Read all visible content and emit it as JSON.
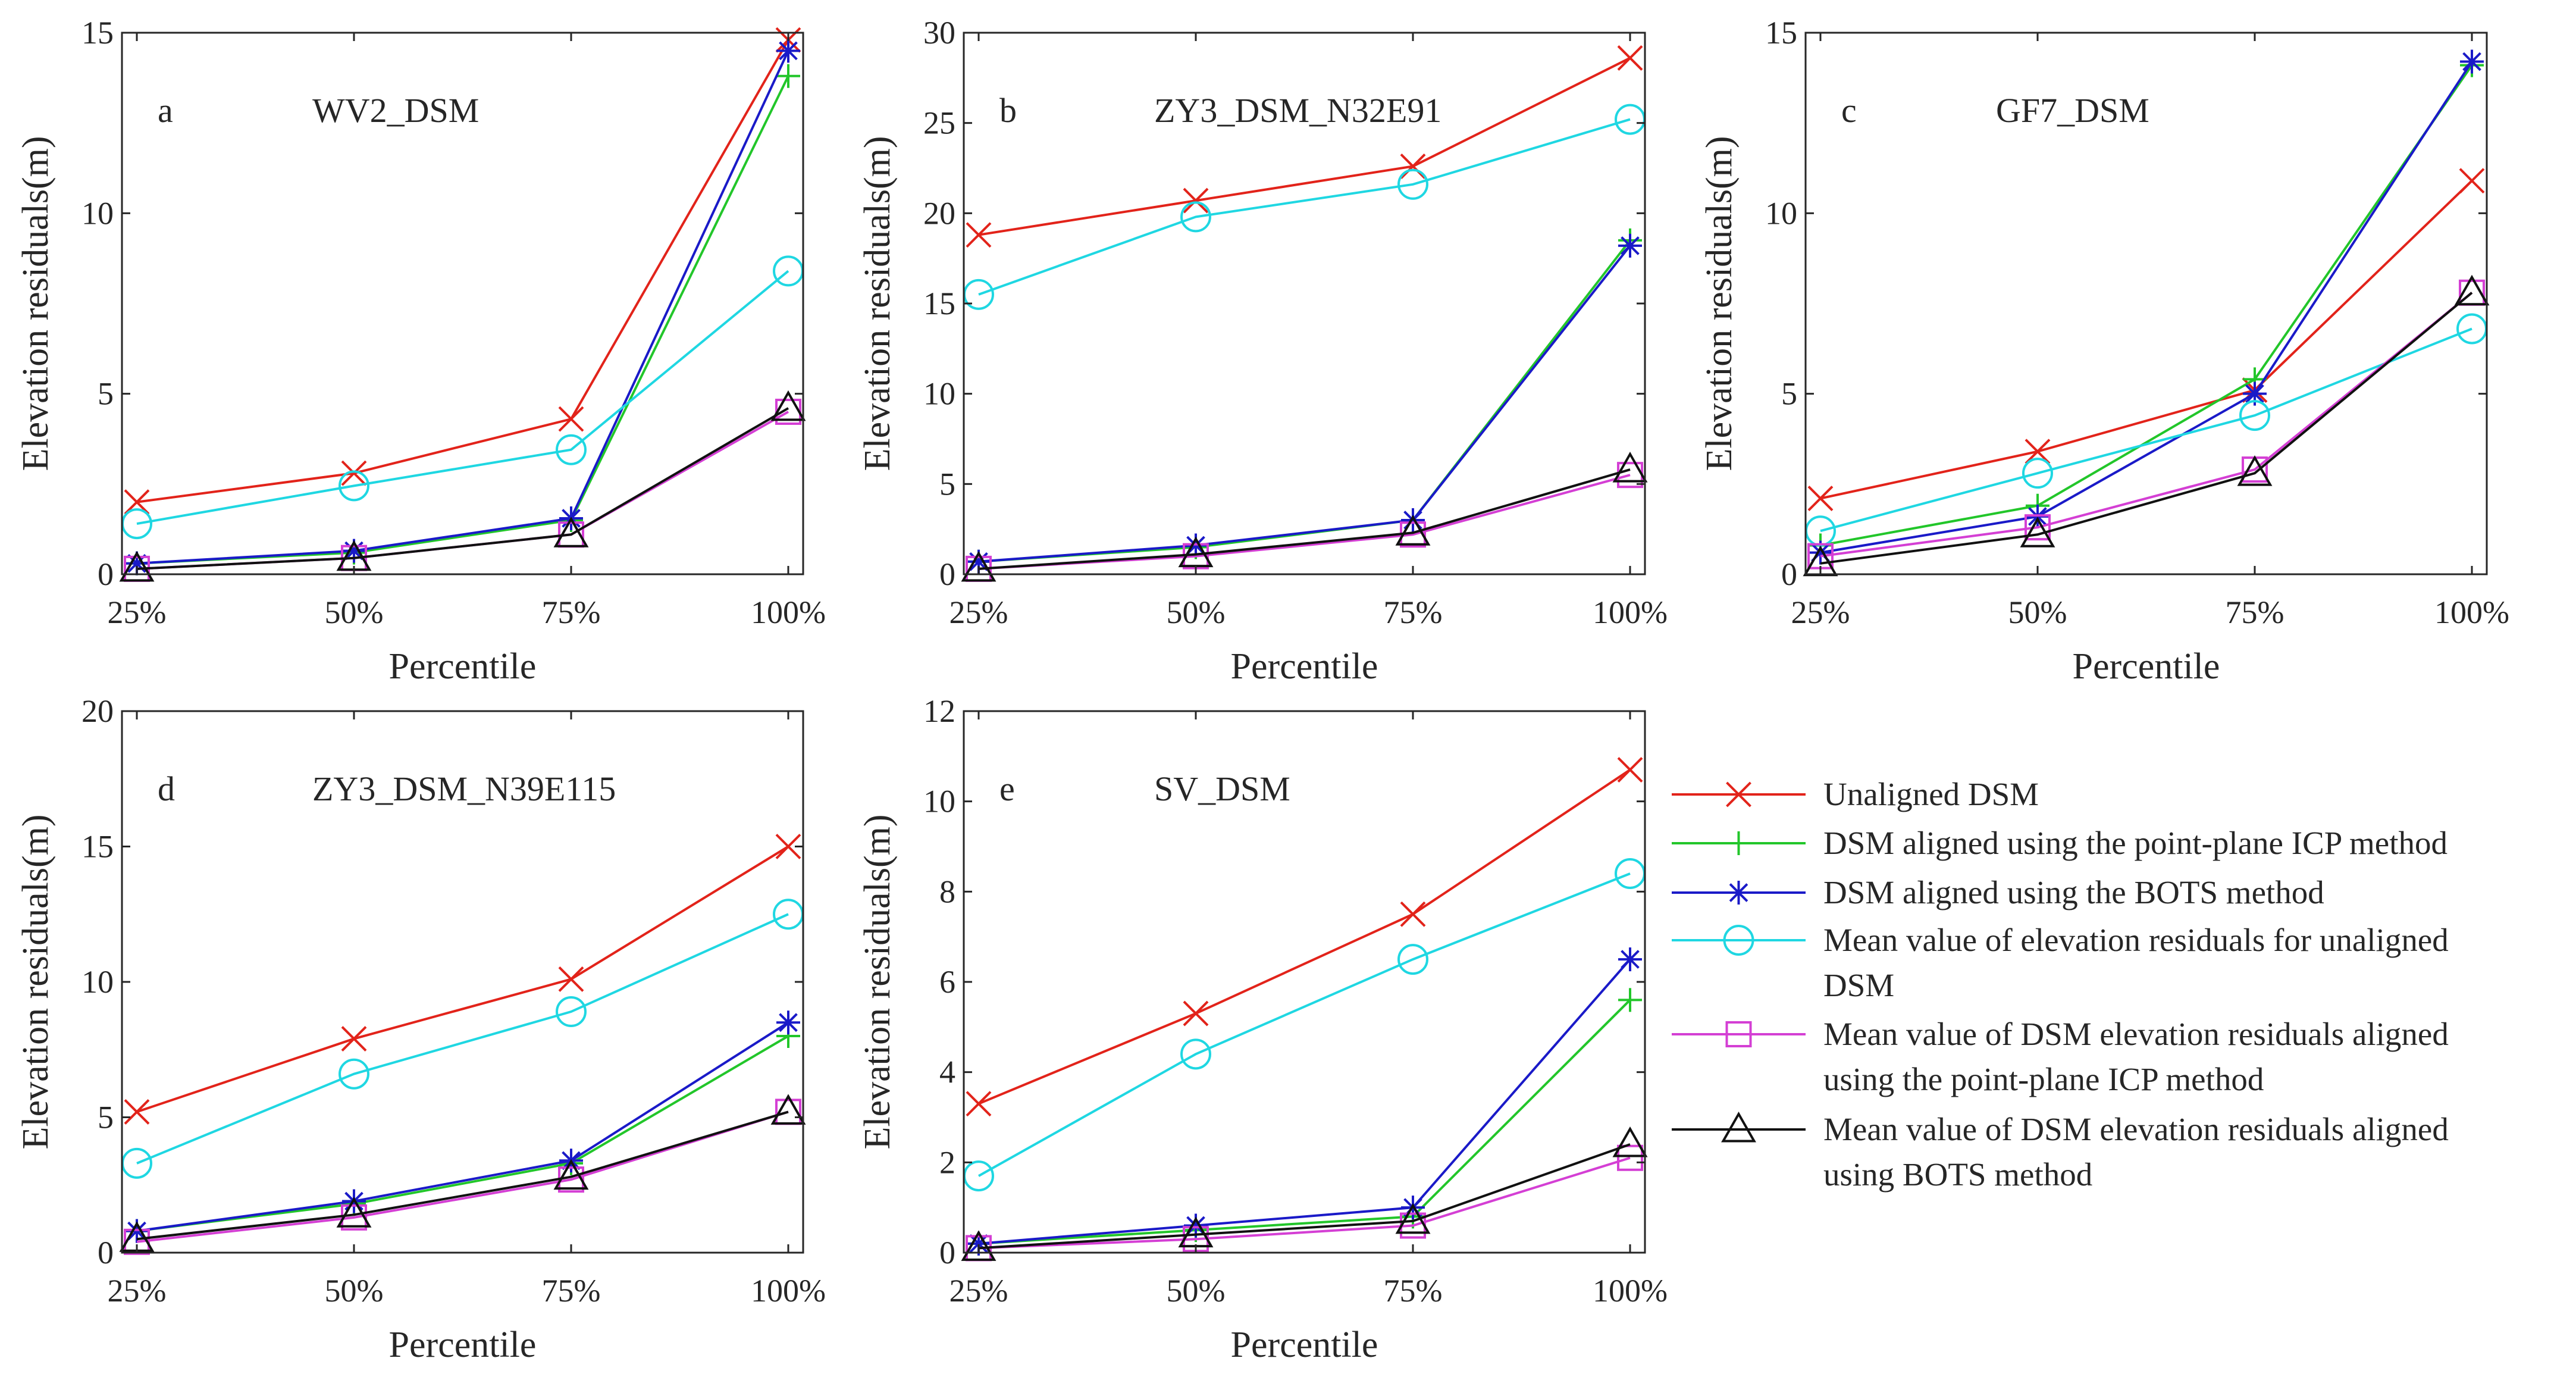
{
  "series_meta": [
    {
      "key": "unaligned",
      "color": "#E2231A",
      "marker": "x",
      "legend": [
        "Unaligned DSM"
      ]
    },
    {
      "key": "icp",
      "color": "#22C62A",
      "marker": "plus",
      "legend": [
        "DSM aligned using the point-plane ICP method"
      ]
    },
    {
      "key": "bots",
      "color": "#1A1AC8",
      "marker": "star",
      "legend": [
        "DSM aligned using the BOTS method"
      ]
    },
    {
      "key": "mean_unaligned",
      "color": "#1FD7E2",
      "marker": "circle",
      "legend": [
        "Mean value of elevation residuals for unaligned",
        "DSM"
      ]
    },
    {
      "key": "mean_icp",
      "color": "#D43FD4",
      "marker": "square",
      "legend": [
        "Mean value of DSM elevation residuals aligned",
        "using the point-plane ICP method"
      ]
    },
    {
      "key": "mean_bots",
      "color": "#111111",
      "marker": "triangle",
      "legend": [
        "Mean value of DSM elevation residuals aligned",
        "using BOTS method"
      ]
    }
  ],
  "chart_data": [
    {
      "type": "line",
      "letter": "a",
      "title": "WV2_DSM",
      "xlabel": "Percentile",
      "ylabel": "Elevation residuals(m)",
      "categories": [
        "25%",
        "50%",
        "75%",
        "100%"
      ],
      "ylim": [
        0,
        15
      ],
      "yticks": [
        0,
        5,
        10,
        15
      ],
      "series": [
        {
          "name": "Unaligned DSM",
          "values": [
            2.0,
            2.8,
            4.3,
            14.8
          ]
        },
        {
          "name": "DSM aligned using the point-plane ICP method",
          "values": [
            0.3,
            0.6,
            1.5,
            13.8
          ]
        },
        {
          "name": "DSM aligned using the BOTS method",
          "values": [
            0.3,
            0.65,
            1.55,
            14.5
          ]
        },
        {
          "name": "Mean value of elevation residuals for unaligned DSM",
          "values": [
            1.4,
            2.45,
            3.45,
            8.4
          ]
        },
        {
          "name": "Mean value of DSM elevation residuals aligned using the point-plane ICP method",
          "values": [
            0.15,
            0.45,
            1.1,
            4.5
          ]
        },
        {
          "name": "Mean value of DSM elevation residuals aligned using BOTS method",
          "values": [
            0.15,
            0.45,
            1.1,
            4.6
          ]
        }
      ]
    },
    {
      "type": "line",
      "letter": "b",
      "title": "ZY3_DSM_N32E91",
      "xlabel": "Percentile",
      "ylabel": "Elevation residuals(m)",
      "categories": [
        "25%",
        "50%",
        "75%",
        "100%"
      ],
      "ylim": [
        0,
        30
      ],
      "yticks": [
        0,
        5,
        10,
        15,
        20,
        25,
        30
      ],
      "series": [
        {
          "name": "Unaligned DSM",
          "values": [
            18.8,
            20.7,
            22.6,
            28.6
          ]
        },
        {
          "name": "DSM aligned using the point-plane ICP method",
          "values": [
            0.7,
            1.5,
            3.0,
            18.5
          ]
        },
        {
          "name": "DSM aligned using the BOTS method",
          "values": [
            0.7,
            1.6,
            3.0,
            18.2
          ]
        },
        {
          "name": "Mean value of elevation residuals for unaligned DSM",
          "values": [
            15.5,
            19.8,
            21.6,
            25.2
          ]
        },
        {
          "name": "Mean value of DSM elevation residuals aligned using the point-plane ICP method",
          "values": [
            0.3,
            1.0,
            2.2,
            5.5
          ]
        },
        {
          "name": "Mean value of DSM elevation residuals aligned using BOTS method",
          "values": [
            0.3,
            1.1,
            2.3,
            5.8
          ]
        }
      ]
    },
    {
      "type": "line",
      "letter": "c",
      "title": "GF7_DSM",
      "xlabel": "Percentile",
      "ylabel": "Elevation residuals(m)",
      "categories": [
        "25%",
        "50%",
        "75%",
        "100%"
      ],
      "ylim": [
        0,
        15
      ],
      "yticks": [
        0,
        5,
        10,
        15
      ],
      "series": [
        {
          "name": "Unaligned DSM",
          "values": [
            2.1,
            3.4,
            5.1,
            10.9
          ]
        },
        {
          "name": "DSM aligned using the point-plane ICP method",
          "values": [
            0.8,
            1.9,
            5.4,
            14.1
          ]
        },
        {
          "name": "DSM aligned using the BOTS method",
          "values": [
            0.6,
            1.6,
            5.0,
            14.2
          ]
        },
        {
          "name": "Mean value of elevation residuals for unaligned DSM",
          "values": [
            1.2,
            2.8,
            4.4,
            6.8
          ]
        },
        {
          "name": "Mean value of DSM elevation residuals aligned using the point-plane ICP method",
          "values": [
            0.5,
            1.3,
            2.9,
            7.8
          ]
        },
        {
          "name": "Mean value of DSM elevation residuals aligned using BOTS method",
          "values": [
            0.3,
            1.1,
            2.8,
            7.8
          ]
        }
      ]
    },
    {
      "type": "line",
      "letter": "d",
      "title": "ZY3_DSM_N39E115",
      "xlabel": "Percentile",
      "ylabel": "Elevation residuals(m)",
      "categories": [
        "25%",
        "50%",
        "75%",
        "100%"
      ],
      "ylim": [
        0,
        20
      ],
      "yticks": [
        0,
        5,
        10,
        15,
        20
      ],
      "series": [
        {
          "name": "Unaligned DSM",
          "values": [
            5.2,
            7.9,
            10.1,
            15.0
          ]
        },
        {
          "name": "DSM aligned using the point-plane ICP method",
          "values": [
            0.8,
            1.8,
            3.3,
            8.0
          ]
        },
        {
          "name": "DSM aligned using the BOTS method",
          "values": [
            0.8,
            1.9,
            3.4,
            8.5
          ]
        },
        {
          "name": "Mean value of elevation residuals for unaligned DSM",
          "values": [
            3.3,
            6.6,
            8.9,
            12.5
          ]
        },
        {
          "name": "Mean value of DSM elevation residuals aligned using the point-plane ICP method",
          "values": [
            0.4,
            1.3,
            2.7,
            5.2
          ]
        },
        {
          "name": "Mean value of DSM elevation residuals aligned using BOTS method",
          "values": [
            0.5,
            1.4,
            2.8,
            5.2
          ]
        }
      ]
    },
    {
      "type": "line",
      "letter": "e",
      "title": "SV_DSM",
      "xlabel": "Percentile",
      "ylabel": "Elevation residuals(m)",
      "categories": [
        "25%",
        "50%",
        "75%",
        "100%"
      ],
      "ylim": [
        0,
        12
      ],
      "yticks": [
        0,
        2,
        4,
        6,
        8,
        10,
        12
      ],
      "series": [
        {
          "name": "Unaligned DSM",
          "values": [
            3.3,
            5.3,
            7.5,
            10.7
          ]
        },
        {
          "name": "DSM aligned using the point-plane ICP method",
          "values": [
            0.2,
            0.5,
            0.8,
            5.6
          ]
        },
        {
          "name": "DSM aligned using the BOTS method",
          "values": [
            0.2,
            0.6,
            1.0,
            6.5
          ]
        },
        {
          "name": "Mean value of elevation residuals for unaligned DSM",
          "values": [
            1.7,
            4.4,
            6.5,
            8.4
          ]
        },
        {
          "name": "Mean value of DSM elevation residuals aligned using the point-plane ICP method",
          "values": [
            0.1,
            0.3,
            0.6,
            2.1
          ]
        },
        {
          "name": "Mean value of DSM elevation residuals aligned using BOTS method",
          "values": [
            0.1,
            0.4,
            0.7,
            2.4
          ]
        }
      ]
    }
  ]
}
